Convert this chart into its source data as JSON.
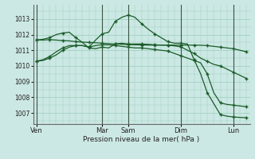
{
  "background_color": "#cce8e4",
  "grid_color": "#99ccbb",
  "line_color": "#1a5c28",
  "ylim": [
    1006.3,
    1013.9
  ],
  "yticks": [
    1007,
    1008,
    1009,
    1010,
    1011,
    1012,
    1013
  ],
  "xlabel": "Pression niveau de la mer( hPa )",
  "day_labels": [
    "Ven",
    "Mar",
    "Sam",
    "Dim",
    "Lun"
  ],
  "day_positions": [
    0,
    10,
    14,
    22,
    30
  ],
  "n_points": 33,
  "lines": [
    [
      1011.65,
      1011.65,
      1011.68,
      1011.65,
      1011.62,
      1011.6,
      1011.55,
      1011.52,
      1011.5,
      1011.48,
      1011.45,
      1011.42,
      1011.4,
      1011.38,
      1011.36,
      1011.35,
      1011.34,
      1011.33,
      1011.33,
      1011.33,
      1011.33,
      1011.33,
      1011.33,
      1011.33,
      1011.33,
      1011.32,
      1011.3,
      1011.25,
      1011.2,
      1011.15,
      1011.1,
      1011.0,
      1010.9
    ],
    [
      1011.65,
      1011.7,
      1011.8,
      1012.0,
      1012.1,
      1012.15,
      1011.8,
      1011.5,
      1011.15,
      1011.1,
      1011.2,
      1011.15,
      1011.4,
      1011.45,
      1011.4,
      1011.4,
      1011.4,
      1011.38,
      1011.35,
      1011.33,
      1011.33,
      1011.28,
      1011.22,
      1011.0,
      1010.8,
      1010.5,
      1010.3,
      1010.1,
      1010.0,
      1009.8,
      1009.6,
      1009.4,
      1009.2
    ],
    [
      1010.3,
      1010.4,
      1010.6,
      1010.9,
      1011.15,
      1011.3,
      1011.3,
      1011.3,
      1011.2,
      1011.3,
      1011.35,
      1011.35,
      1011.3,
      1011.25,
      1011.2,
      1011.15,
      1011.15,
      1011.1,
      1011.05,
      1011.0,
      1010.95,
      1010.8,
      1010.65,
      1010.5,
      1010.35,
      1010.2,
      1009.5,
      1008.3,
      1007.65,
      1007.55,
      1007.5,
      1007.45,
      1007.4
    ],
    [
      1010.3,
      1010.35,
      1010.5,
      1010.7,
      1011.0,
      1011.2,
      1011.3,
      1011.3,
      1011.2,
      1011.65,
      1012.05,
      1012.15,
      1012.85,
      1013.1,
      1013.25,
      1013.1,
      1012.7,
      1012.35,
      1012.05,
      1011.8,
      1011.55,
      1011.45,
      1011.45,
      1011.4,
      1010.4,
      1009.5,
      1008.3,
      1007.6,
      1006.9,
      1006.8,
      1006.75,
      1006.72,
      1006.7
    ]
  ],
  "marker_stride": 2,
  "figsize": [
    3.2,
    2.0
  ],
  "dpi": 100
}
